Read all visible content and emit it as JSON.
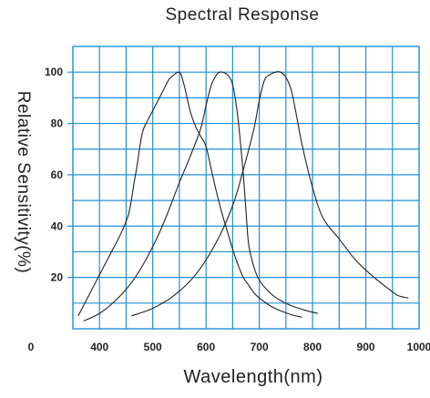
{
  "chart_data": {
    "type": "line",
    "title": "Spectral Response",
    "xlabel": "Wavelength(nm)",
    "ylabel": "Relative Sensitivity(%)",
    "xlim": [
      350,
      1000
    ],
    "ylim": [
      0,
      110
    ],
    "x_origin_label": "0",
    "xticks": [
      400,
      500,
      600,
      700,
      800,
      900,
      1000
    ],
    "yticks": [
      20,
      40,
      60,
      80,
      100
    ],
    "grid": true,
    "grid_color": "#1e90d8",
    "line_color": "#222222",
    "legend": "none",
    "series": [
      {
        "x": [
          360,
          380,
          400,
          420,
          440,
          455,
          465,
          470,
          480,
          490,
          500,
          510,
          520,
          530,
          540,
          548,
          553,
          560,
          570,
          580,
          590,
          600,
          610,
          620,
          630,
          640,
          650,
          660,
          670,
          680,
          690,
          700,
          720,
          740,
          760,
          780
        ],
        "y": [
          5,
          13,
          21,
          29,
          37,
          45,
          57,
          63,
          76,
          81,
          85,
          89,
          93,
          97,
          99,
          100,
          99,
          94,
          85,
          79,
          75,
          71,
          62,
          53,
          45,
          38,
          31,
          25,
          20,
          17,
          14,
          12,
          9,
          7,
          5.5,
          4.5
        ]
      },
      {
        "x": [
          370,
          400,
          430,
          460,
          490,
          520,
          550,
          570,
          590,
          600,
          610,
          620,
          625,
          630,
          640,
          650,
          660,
          670,
          675,
          680,
          690,
          700,
          720,
          740,
          760,
          790,
          810
        ],
        "y": [
          3,
          6,
          11,
          18,
          28,
          41,
          57,
          67,
          78,
          87,
          95,
          99,
          100,
          100,
          99,
          95,
          82,
          60,
          46,
          33,
          24,
          19,
          14,
          11,
          9,
          7,
          6
        ]
      },
      {
        "x": [
          460,
          500,
          540,
          580,
          620,
          650,
          670,
          690,
          700,
          710,
          720,
          730,
          740,
          750,
          760,
          770,
          780,
          800,
          820,
          850,
          880,
          910,
          940,
          960,
          980
        ],
        "y": [
          5,
          8,
          13,
          21,
          34,
          48,
          62,
          78,
          89,
          97,
          99,
          100,
          100,
          98,
          93,
          83,
          72,
          55,
          43,
          35,
          27,
          21,
          16,
          13,
          12
        ]
      }
    ]
  }
}
